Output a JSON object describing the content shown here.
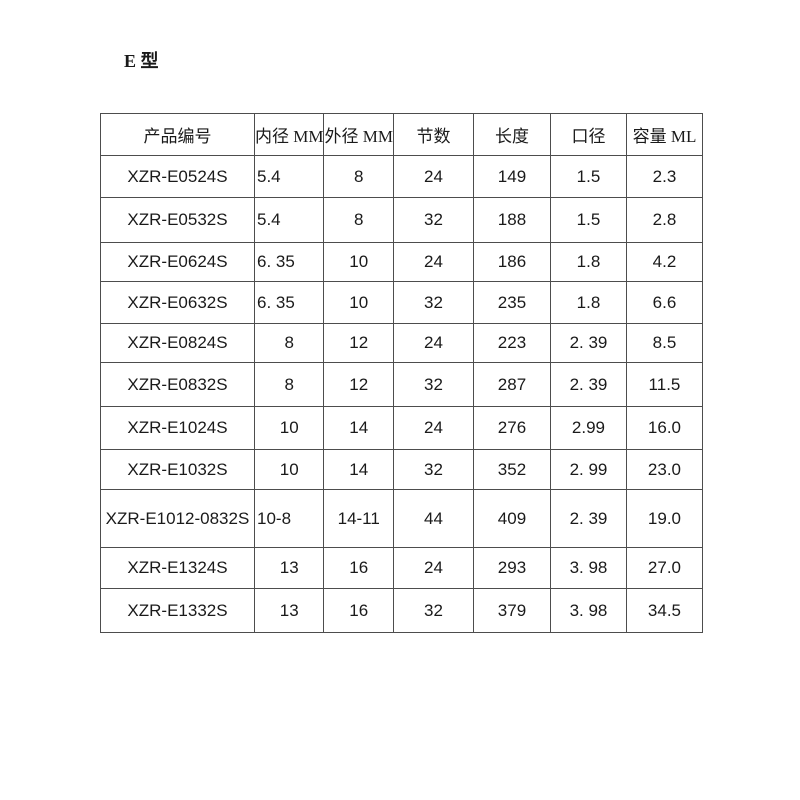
{
  "page": {
    "title": "E 型"
  },
  "table": {
    "headers": [
      "产品编号",
      "内径 MM",
      "外径 MM",
      "节数",
      "长度",
      "口径",
      "容量 ML"
    ],
    "rows": [
      [
        "XZR-E0524S",
        "5.4",
        "8",
        "24",
        "149",
        "1.5",
        "2.3"
      ],
      [
        "XZR-E0532S",
        "5.4",
        "8",
        "32",
        "188",
        "1.5",
        "2.8"
      ],
      [
        "XZR-E0624S",
        "6. 35",
        "10",
        "24",
        "186",
        "1.8",
        "4.2"
      ],
      [
        "XZR-E0632S",
        "6. 35",
        "10",
        "32",
        "235",
        "1.8",
        "6.6"
      ],
      [
        "XZR-E0824S",
        "8",
        "12",
        "24",
        "223",
        "2. 39",
        "8.5"
      ],
      [
        "XZR-E0832S",
        "8",
        "12",
        "32",
        "287",
        "2. 39",
        "11.5"
      ],
      [
        "XZR-E1024S",
        "10",
        "14",
        "24",
        "276",
        "2.99",
        "16.0"
      ],
      [
        "XZR-E1032S",
        "10",
        "14",
        "32",
        "352",
        "2. 99",
        "23.0"
      ],
      [
        "XZR-E1012-0832S",
        "10-8",
        "14-11",
        "44",
        "409",
        "2. 39",
        "19.0"
      ],
      [
        "XZR-E1324S",
        "13",
        "16",
        "24",
        "293",
        "3. 98",
        "27.0"
      ],
      [
        "XZR-E1332S",
        "13",
        "16",
        "32",
        "379",
        "3. 98",
        "34.5"
      ]
    ]
  },
  "colors": {
    "text": "#1a1a1a",
    "border": "#4d4d4d",
    "background": "#ffffff"
  }
}
